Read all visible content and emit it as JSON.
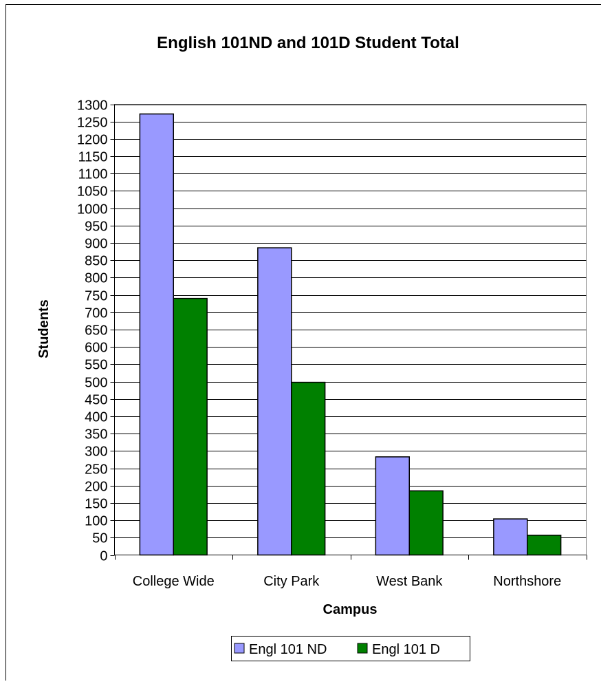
{
  "chart_data": {
    "type": "bar",
    "title": "English 101ND and 101D Student Total",
    "xlabel": "Campus",
    "ylabel": "Students",
    "categories": [
      "College Wide",
      "City Park",
      "West Bank",
      "Northshore"
    ],
    "series": [
      {
        "name": "Engl 101 ND",
        "color": "#9999ff",
        "values": [
          1272,
          886,
          283,
          104
        ]
      },
      {
        "name": "Engl 101 D",
        "color": "#008000",
        "values": [
          740,
          498,
          185,
          57
        ]
      }
    ],
    "ylim": [
      0,
      1300
    ],
    "yticks": [
      0,
      50,
      100,
      150,
      200,
      250,
      300,
      350,
      400,
      450,
      500,
      550,
      600,
      650,
      700,
      750,
      800,
      850,
      900,
      950,
      1000,
      1050,
      1100,
      1150,
      1200,
      1250,
      1300
    ],
    "grid": true,
    "legend_position": "bottom"
  }
}
